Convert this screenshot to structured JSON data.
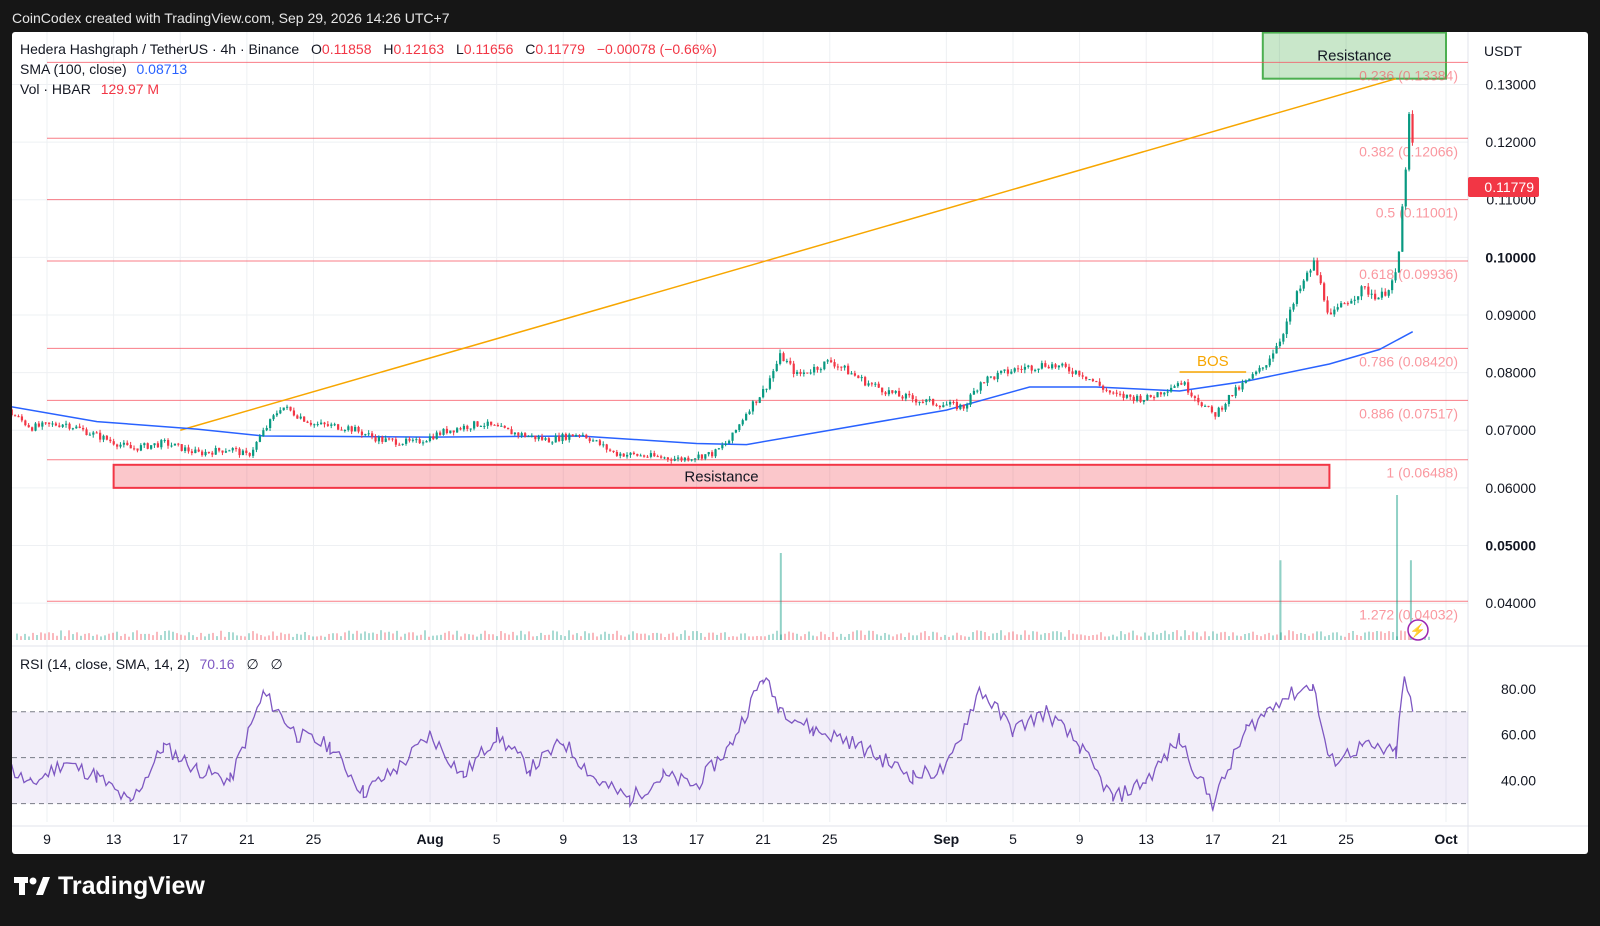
{
  "header": {
    "attribution": "CoinCodex created with TradingView.com, Sep 29, 2026 14:26 UTC+7"
  },
  "legend": {
    "symbol": "Hedera Hashgraph / TetherUS · 4h · Binance",
    "o_label": "O",
    "o_value": "0.11858",
    "h_label": "H",
    "h_value": "0.12163",
    "l_label": "L",
    "l_value": "0.11656",
    "c_label": "C",
    "c_value": "0.11779",
    "change": "−0.00078 (−0.66%)",
    "sma_label": "SMA (100, close)",
    "sma_value": "0.08713",
    "vol_label": "Vol · HBAR",
    "vol_value": "129.97 M"
  },
  "rsi_legend": {
    "label": "RSI (14, close, SMA, 14, 2)",
    "value": "70.16",
    "extra1": "∅",
    "extra2": "∅"
  },
  "currency": "USDT",
  "last_price_tag": "0.11779",
  "footer": {
    "brand": "TradingView"
  },
  "colors": {
    "up": "#089981",
    "down": "#f23645",
    "sma": "#2962ff",
    "trend": "#f7a600",
    "fib": "#f7525f",
    "rsi": "#7e57c2",
    "resistance_green": "#4caf50",
    "resistance_red": "#f23645"
  },
  "chart_data": [
    {
      "type": "candlestick",
      "title": "Hedera Hashgraph / TetherUS · 4h · Binance",
      "x_ticks": [
        "9",
        "13",
        "17",
        "21",
        "25",
        "Aug",
        "5",
        "9",
        "13",
        "17",
        "21",
        "25",
        "Sep",
        "5",
        "9",
        "13",
        "17",
        "21",
        "25",
        "Oct"
      ],
      "x_tick_dates": [
        "2026-07-09",
        "2026-07-13",
        "2026-07-17",
        "2026-07-21",
        "2026-07-25",
        "2026-08-01",
        "2026-08-05",
        "2026-08-09",
        "2026-08-13",
        "2026-08-17",
        "2026-08-21",
        "2026-08-25",
        "2026-09-01",
        "2026-09-05",
        "2026-09-09",
        "2026-09-13",
        "2026-09-17",
        "2026-09-21",
        "2026-09-25",
        "2026-10-01"
      ],
      "y_ticks": [
        "0.13000",
        "0.12000",
        "0.11000",
        "0.10000",
        "0.09000",
        "0.08000",
        "0.07000",
        "0.06000",
        "0.05000",
        "0.04000"
      ],
      "ylim": [
        0.0336,
        0.1391
      ],
      "price_path": [
        [
          "2026-07-06",
          0.0745
        ],
        [
          "2026-07-08",
          0.0705
        ],
        [
          "2026-07-10",
          0.0712
        ],
        [
          "2026-07-12",
          0.069
        ],
        [
          "2026-07-14",
          0.0668
        ],
        [
          "2026-07-16",
          0.0678
        ],
        [
          "2026-07-18",
          0.066
        ],
        [
          "2026-07-20",
          0.0668
        ],
        [
          "2026-07-21",
          0.0655
        ],
        [
          "2026-07-22",
          0.07
        ],
        [
          "2026-07-23",
          0.0742
        ],
        [
          "2026-07-25",
          0.071
        ],
        [
          "2026-07-27",
          0.0705
        ],
        [
          "2026-07-29",
          0.0683
        ],
        [
          "2026-07-31",
          0.0678
        ],
        [
          "2026-08-02",
          0.07
        ],
        [
          "2026-08-04",
          0.0712
        ],
        [
          "2026-08-06",
          0.0695
        ],
        [
          "2026-08-08",
          0.0683
        ],
        [
          "2026-08-10",
          0.0695
        ],
        [
          "2026-08-12",
          0.066
        ],
        [
          "2026-08-14",
          0.0655
        ],
        [
          "2026-08-16",
          0.065
        ],
        [
          "2026-08-18",
          0.066
        ],
        [
          "2026-08-19",
          0.0685
        ],
        [
          "2026-08-20",
          0.0735
        ],
        [
          "2026-08-21",
          0.077
        ],
        [
          "2026-08-22",
          0.083
        ],
        [
          "2026-08-23",
          0.0795
        ],
        [
          "2026-08-25",
          0.082
        ],
        [
          "2026-08-27",
          0.0785
        ],
        [
          "2026-08-29",
          0.076
        ],
        [
          "2026-08-31",
          0.0748
        ],
        [
          "2026-09-02",
          0.074
        ],
        [
          "2026-09-03",
          0.0785
        ],
        [
          "2026-09-05",
          0.0805
        ],
        [
          "2026-09-07",
          0.0815
        ],
        [
          "2026-09-09",
          0.08
        ],
        [
          "2026-09-11",
          0.076
        ],
        [
          "2026-09-13",
          0.0755
        ],
        [
          "2026-09-15",
          0.0785
        ],
        [
          "2026-09-17",
          0.0725
        ],
        [
          "2026-09-18",
          0.076
        ],
        [
          "2026-09-19",
          0.0785
        ],
        [
          "2026-09-20",
          0.081
        ],
        [
          "2026-09-21",
          0.086
        ],
        [
          "2026-09-22",
          0.0935
        ],
        [
          "2026-09-23",
          0.099
        ],
        [
          "2026-09-24",
          0.0895
        ],
        [
          "2026-09-25",
          0.0925
        ],
        [
          "2026-09-26",
          0.0945
        ],
        [
          "2026-09-27",
          0.093
        ],
        [
          "2026-09-28",
          0.097
        ],
        [
          "2026-09-28T12",
          0.115
        ],
        [
          "2026-09-28T16",
          0.125
        ],
        [
          "2026-09-29",
          0.1178
        ]
      ],
      "sma_100_path": [
        [
          "2026-07-06",
          0.0745
        ],
        [
          "2026-07-12",
          0.0715
        ],
        [
          "2026-07-18",
          0.0702
        ],
        [
          "2026-07-22",
          0.069
        ],
        [
          "2026-08-01",
          0.0688
        ],
        [
          "2026-08-10",
          0.069
        ],
        [
          "2026-08-17",
          0.0677
        ],
        [
          "2026-08-20",
          0.0675
        ],
        [
          "2026-08-25",
          0.07
        ],
        [
          "2026-09-01",
          0.0735
        ],
        [
          "2026-09-06",
          0.0775
        ],
        [
          "2026-09-10",
          0.0775
        ],
        [
          "2026-09-15",
          0.0768
        ],
        [
          "2026-09-19",
          0.0785
        ],
        [
          "2026-09-24",
          0.0815
        ],
        [
          "2026-09-27",
          0.084
        ],
        [
          "2026-09-29",
          0.0871
        ]
      ],
      "trend_line": [
        [
          "2026-07-17",
          0.07
        ],
        [
          "2026-09-28",
          0.131
        ]
      ],
      "bos": {
        "label": "BOS",
        "level": 0.0801,
        "from": "2026-09-15",
        "to": "2026-09-19"
      },
      "fibonacci": [
        {
          "ratio": "0.236",
          "value": "0.13384",
          "label": "0.236 (0.13384)"
        },
        {
          "ratio": "0.382",
          "value": "0.12066",
          "label": "0.382 (0.12066)"
        },
        {
          "ratio": "0.5",
          "value": "0.11001",
          "label": "0.5 (0.11001)"
        },
        {
          "ratio": "0.618",
          "value": "0.09936",
          "label": "0.618 (0.09936)"
        },
        {
          "ratio": "0.786",
          "value": "0.08420",
          "label": "0.786 (0.08420)"
        },
        {
          "ratio": "0.886",
          "value": "0.07517",
          "label": "0.886 (0.07517)"
        },
        {
          "ratio": "1",
          "value": "0.06488",
          "label": "1 (0.06488)"
        },
        {
          "ratio": "1.272",
          "value": "0.04032",
          "label": "1.272 (0.04032)"
        }
      ],
      "zones": [
        {
          "label": "Resistance",
          "color": "green",
          "from": "2026-09-20",
          "to": "2026-10-01",
          "low": 0.131,
          "high": 0.139
        },
        {
          "label": "Resistance",
          "color": "red",
          "from": "2026-07-13",
          "to": "2026-09-24",
          "low": 0.06,
          "high": 0.064
        }
      ],
      "last_price": 0.11779,
      "volume_spikes": [
        [
          "2026-08-22",
          0.6
        ],
        [
          "2026-09-21",
          0.55
        ],
        [
          "2026-09-28",
          1.0
        ],
        [
          "2026-09-28T20",
          0.55
        ]
      ]
    },
    {
      "type": "line",
      "title": "RSI (14, close, SMA, 14, 2)",
      "y_ticks": [
        "80.00",
        "60.00",
        "40.00"
      ],
      "ylim": [
        22,
        96
      ],
      "band": [
        30,
        70
      ],
      "midline": 50,
      "rsi_path": [
        [
          "2026-07-06",
          50
        ],
        [
          "2026-07-08",
          38
        ],
        [
          "2026-07-10",
          48
        ],
        [
          "2026-07-12",
          42
        ],
        [
          "2026-07-14",
          30
        ],
        [
          "2026-07-16",
          55
        ],
        [
          "2026-07-18",
          45
        ],
        [
          "2026-07-20",
          40
        ],
        [
          "2026-07-22",
          78
        ],
        [
          "2026-07-24",
          60
        ],
        [
          "2026-07-26",
          55
        ],
        [
          "2026-07-28",
          35
        ],
        [
          "2026-07-30",
          45
        ],
        [
          "2026-08-01",
          60
        ],
        [
          "2026-08-03",
          42
        ],
        [
          "2026-08-05",
          60
        ],
        [
          "2026-08-07",
          45
        ],
        [
          "2026-08-09",
          57
        ],
        [
          "2026-08-11",
          40
        ],
        [
          "2026-08-13",
          32
        ],
        [
          "2026-08-15",
          42
        ],
        [
          "2026-08-17",
          38
        ],
        [
          "2026-08-19",
          55
        ],
        [
          "2026-08-21",
          85
        ],
        [
          "2026-08-22",
          72
        ],
        [
          "2026-08-24",
          62
        ],
        [
          "2026-08-26",
          58
        ],
        [
          "2026-08-28",
          50
        ],
        [
          "2026-08-30",
          42
        ],
        [
          "2026-09-01",
          45
        ],
        [
          "2026-09-03",
          80
        ],
        [
          "2026-09-05",
          62
        ],
        [
          "2026-09-07",
          70
        ],
        [
          "2026-09-09",
          55
        ],
        [
          "2026-09-11",
          32
        ],
        [
          "2026-09-13",
          40
        ],
        [
          "2026-09-15",
          58
        ],
        [
          "2026-09-17",
          30
        ],
        [
          "2026-09-19",
          62
        ],
        [
          "2026-09-21",
          75
        ],
        [
          "2026-09-23",
          82
        ],
        [
          "2026-09-24",
          48
        ],
        [
          "2026-09-26",
          55
        ],
        [
          "2026-09-28",
          52
        ],
        [
          "2026-09-28T12",
          85
        ],
        [
          "2026-09-29",
          70
        ]
      ]
    }
  ]
}
